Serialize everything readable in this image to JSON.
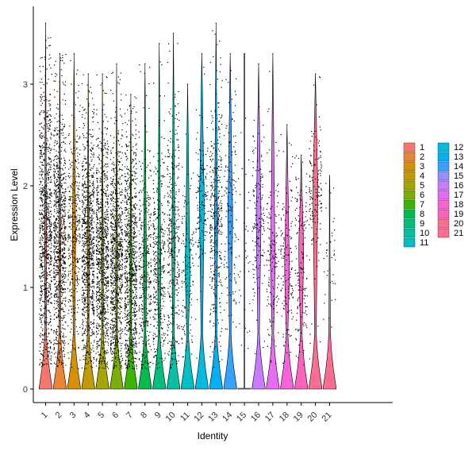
{
  "chart_data": {
    "type": "violin",
    "xlabel": "Identity",
    "ylabel": "Expression Level",
    "ylim": [
      0,
      3.5
    ],
    "yticks": [
      0,
      1,
      2,
      3
    ],
    "grid": false,
    "legend_position": "right",
    "points_overlay": true,
    "categories": [
      "1",
      "2",
      "3",
      "4",
      "5",
      "6",
      "7",
      "8",
      "9",
      "10",
      "11",
      "12",
      "13",
      "14",
      "15",
      "16",
      "17",
      "18",
      "19",
      "20",
      "21"
    ],
    "colors": [
      "#F8766D",
      "#EB8335",
      "#D89000",
      "#C09B00",
      "#A3A500",
      "#7CAE00",
      "#39B600",
      "#00BB4E",
      "#00BF7D",
      "#00C1A3",
      "#00BFC4",
      "#00BAE0",
      "#00B0F6",
      "#35A2FF",
      "#9590FF",
      "#C77CFF",
      "#E76BF3",
      "#FA62DB",
      "#FF62BC",
      "#FF6C91",
      "#FF6C91"
    ],
    "series": [
      {
        "name": "1",
        "max": 3.6,
        "dense_range": [
          0.4,
          2.7
        ],
        "density": "high"
      },
      {
        "name": "2",
        "max": 3.3,
        "dense_range": [
          0.4,
          2.5
        ],
        "density": "high"
      },
      {
        "name": "3",
        "max": 3.3,
        "dense_range": [
          0.7,
          2.4
        ],
        "density": "medium"
      },
      {
        "name": "4",
        "max": 3.1,
        "dense_range": [
          0.5,
          2.3
        ],
        "density": "high"
      },
      {
        "name": "5",
        "max": 3.1,
        "dense_range": [
          0.4,
          2.2
        ],
        "density": "high"
      },
      {
        "name": "6",
        "max": 3.2,
        "dense_range": [
          0.4,
          2.2
        ],
        "density": "high"
      },
      {
        "name": "7",
        "max": 2.9,
        "dense_range": [
          0.3,
          2.2
        ],
        "density": "high"
      },
      {
        "name": "8",
        "max": 3.2,
        "dense_range": [
          0.3,
          2.0
        ],
        "density": "medium"
      },
      {
        "name": "9",
        "max": 3.4,
        "dense_range": [
          0.3,
          2.1
        ],
        "density": "medium"
      },
      {
        "name": "10",
        "max": 3.5,
        "dense_range": [
          0.4,
          2.5
        ],
        "density": "medium"
      },
      {
        "name": "11",
        "max": 3.0,
        "dense_range": [
          0.5,
          1.9
        ],
        "density": "low"
      },
      {
        "name": "12",
        "max": 3.3,
        "dense_range": [
          1.3,
          2.4
        ],
        "density": "low"
      },
      {
        "name": "13",
        "max": 3.6,
        "dense_range": [
          0.7,
          2.6
        ],
        "density": "medium"
      },
      {
        "name": "14",
        "max": 3.3,
        "dense_range": [
          0.8,
          2.6
        ],
        "density": "low"
      },
      {
        "name": "15",
        "max": 3.3,
        "dense_range": [
          0.6,
          2.2
        ],
        "density": "very-low"
      },
      {
        "name": "16",
        "max": 3.2,
        "dense_range": [
          1.0,
          2.4
        ],
        "density": "low"
      },
      {
        "name": "17",
        "max": 3.3,
        "dense_range": [
          0.6,
          2.0
        ],
        "density": "low"
      },
      {
        "name": "18",
        "max": 2.6,
        "dense_range": [
          0.5,
          1.9
        ],
        "density": "low"
      },
      {
        "name": "19",
        "max": 2.3,
        "dense_range": [
          0.5,
          2.2
        ],
        "density": "low"
      },
      {
        "name": "20",
        "max": 3.1,
        "dense_range": [
          1.5,
          2.4
        ],
        "density": "low"
      },
      {
        "name": "21",
        "max": 2.1,
        "dense_range": [
          0.8,
          2.0
        ],
        "density": "very-low"
      }
    ]
  }
}
